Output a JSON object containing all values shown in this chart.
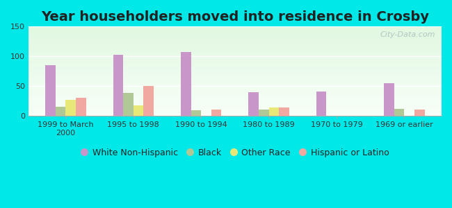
{
  "title": "Year householders moved into residence in Crosby",
  "categories": [
    "1999 to March\n2000",
    "1995 to 1998",
    "1990 to 1994",
    "1980 to 1989",
    "1970 to 1979",
    "1969 or earlier"
  ],
  "series": {
    "White Non-Hispanic": [
      85,
      103,
      107,
      40,
      41,
      55
    ],
    "Black": [
      15,
      38,
      9,
      10,
      0,
      12
    ],
    "Other Race": [
      27,
      18,
      0,
      14,
      0,
      0
    ],
    "Hispanic or Latino": [
      30,
      50,
      11,
      14,
      0,
      11
    ]
  },
  "colors": {
    "White Non-Hispanic": "#c896c8",
    "Black": "#b0c896",
    "Other Race": "#e8e878",
    "Hispanic or Latino": "#f0a8a0"
  },
  "ylim": [
    0,
    150
  ],
  "yticks": [
    0,
    50,
    100,
    150
  ],
  "outer_background": "#00e8e8",
  "title_fontsize": 14,
  "legend_fontsize": 9,
  "tick_fontsize": 8,
  "bar_width": 0.15,
  "watermark": "City-Data.com"
}
